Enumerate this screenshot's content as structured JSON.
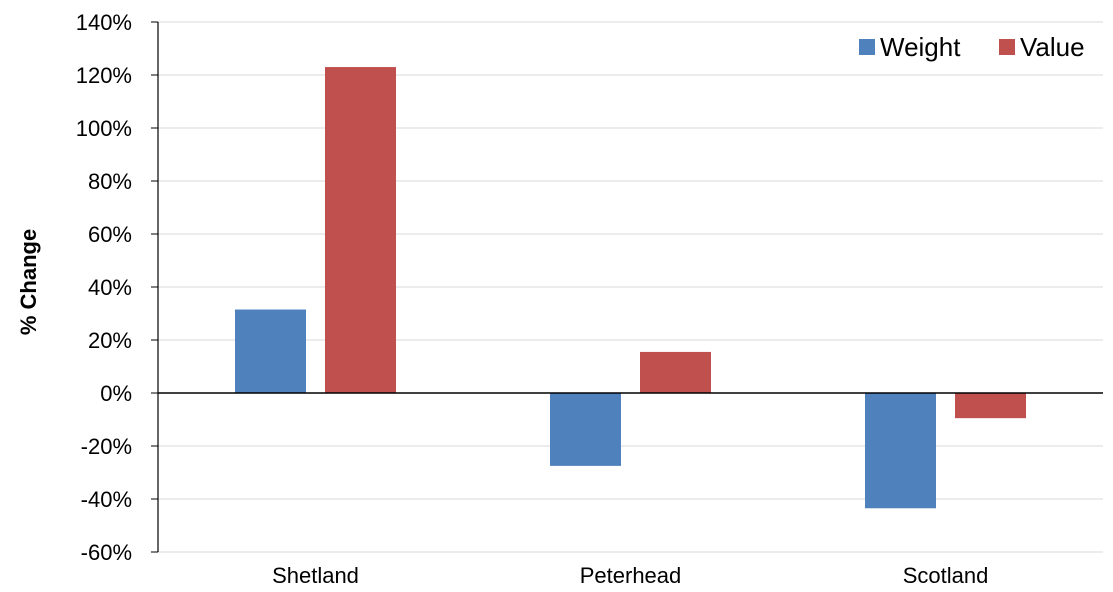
{
  "chart_data": {
    "type": "bar",
    "title": "",
    "xlabel": "",
    "ylabel": "% Change",
    "categories": [
      "Shetland",
      "Peterhead",
      "Scotland"
    ],
    "series": [
      {
        "name": "Weight",
        "color": "#4F81BD",
        "values": [
          31.5,
          -27.5,
          -43.5
        ]
      },
      {
        "name": "Value",
        "color": "#C0504D",
        "values": [
          123,
          15.5,
          -9.5
        ]
      }
    ],
    "ylim": [
      -60,
      140
    ],
    "yticks": [
      140,
      120,
      100,
      80,
      60,
      40,
      20,
      0,
      -20,
      -40,
      -60
    ],
    "ytick_labels": [
      "140%",
      "120%",
      "100%",
      "80%",
      "60%",
      "40%",
      "20%",
      "0%",
      "-20%",
      "-40%",
      "-60%"
    ],
    "grid": true,
    "legend_position": "top-right"
  }
}
